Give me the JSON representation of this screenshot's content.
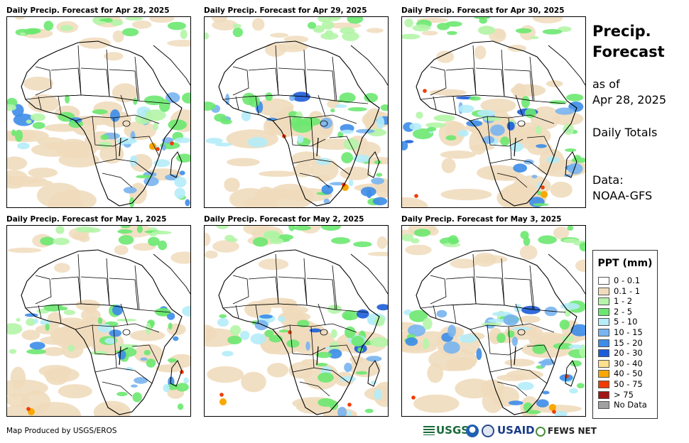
{
  "panels": [
    {
      "title": "Daily Precip. Forecast for Apr 28, 2025"
    },
    {
      "title": "Daily Precip. Forecast for Apr 29, 2025"
    },
    {
      "title": "Daily Precip. Forecast for Apr 30, 2025"
    },
    {
      "title": "Daily Precip. Forecast for May 1, 2025"
    },
    {
      "title": "Daily Precip. Forecast for May 2, 2025"
    },
    {
      "title": "Daily Precip. Forecast for May 3, 2025"
    }
  ],
  "side": {
    "title_line1": "Precip.",
    "title_line2": "Forecast",
    "asof_line1": "as of",
    "asof_line2": "Apr 28, 2025",
    "totals": "Daily Totals",
    "data_line1": "Data:",
    "data_line2": "NOAA-GFS"
  },
  "legend": {
    "title": "PPT (mm)",
    "items": [
      {
        "label": "0 - 0.1",
        "color": "#ffffff"
      },
      {
        "label": "0.1 - 1",
        "color": "#f0dcbc"
      },
      {
        "label": "1 - 2",
        "color": "#b4f5a8"
      },
      {
        "label": "2 - 5",
        "color": "#6ce870"
      },
      {
        "label": "5 - 10",
        "color": "#b4ecf8"
      },
      {
        "label": "10 - 15",
        "color": "#78b4f0"
      },
      {
        "label": "15 - 20",
        "color": "#3c8ce8"
      },
      {
        "label": "20 - 30",
        "color": "#1c5cd8"
      },
      {
        "label": "30 - 40",
        "color": "#fce08c"
      },
      {
        "label": "40 - 50",
        "color": "#f8a800"
      },
      {
        "label": "50 - 75",
        "color": "#f03c00"
      },
      {
        "label": "> 75",
        "color": "#a01414"
      },
      {
        "label": "No Data",
        "color": "#a0a0a0"
      }
    ]
  },
  "footer": {
    "credit": "Map Produced by USGS/EROS",
    "logos": {
      "usgs": "USGS",
      "usaid": "USAID",
      "fews": "FEWS NET"
    }
  }
}
